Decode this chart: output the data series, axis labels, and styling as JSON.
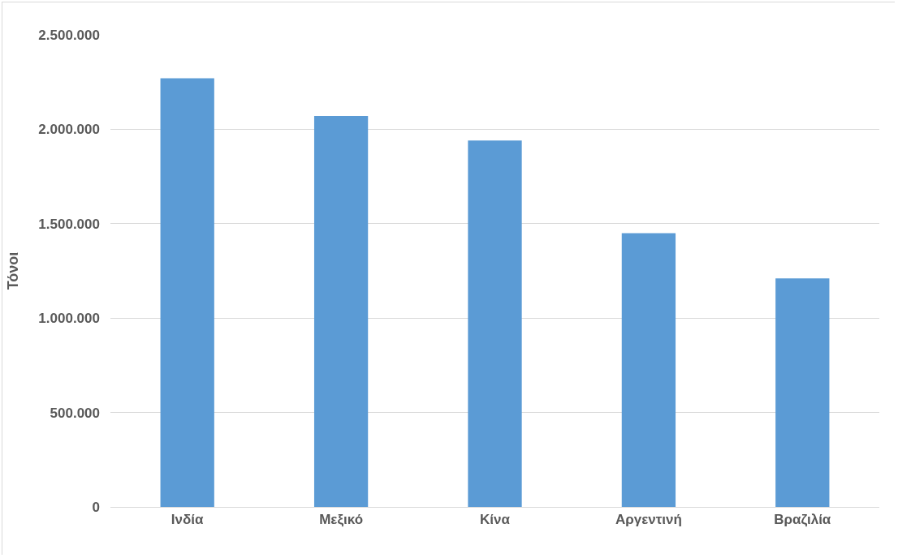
{
  "chart_data": {
    "type": "bar",
    "ylabel": "Τόνοι",
    "categories": [
      "Ινδία",
      "Μεξικό",
      "Κίνα",
      "Αργεντινή",
      "Βραζιλία"
    ],
    "values": [
      2270000,
      2070000,
      1940000,
      1450000,
      1210000
    ],
    "color": "#5b9bd5",
    "ylim": [
      0,
      2500000
    ],
    "yticks": [
      0,
      {
        "value": 500000,
        "label": "500.000"
      },
      {
        "value": 1000000,
        "label": "1.000.000"
      },
      {
        "value": 1500000,
        "label": "1.500.000"
      },
      {
        "value": 2000000,
        "label": "2.000.000"
      },
      {
        "value": 2500000,
        "label": "2.500.000"
      }
    ],
    "grid": "y"
  }
}
